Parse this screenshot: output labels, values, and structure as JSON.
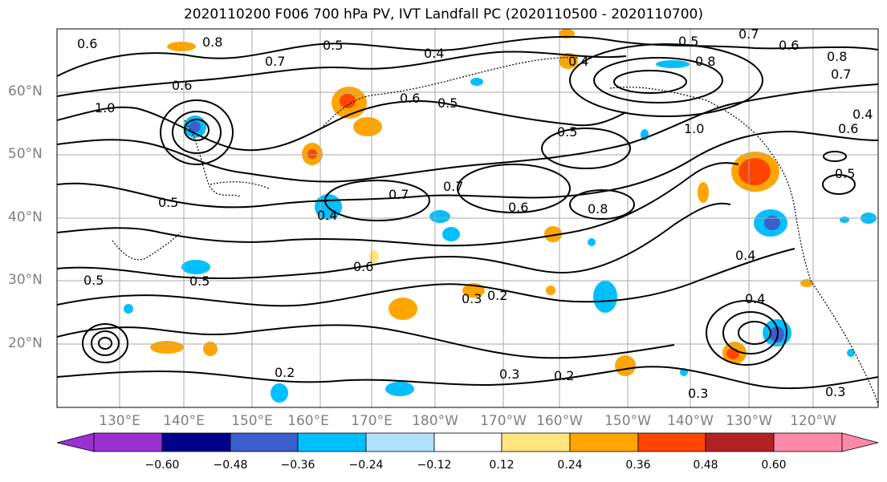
{
  "title": "2020110200 F006 700 hPa PV, IVT Landfall PC (2020110500 - 2020110700)",
  "lat_labels": [
    "60°N",
    "50°N",
    "40°N",
    "30°N",
    "20°N"
  ],
  "lon_labels": [
    "130°E",
    "140°E",
    "150°E",
    "160°E",
    "170°E",
    "180°W",
    "170°W",
    "160°W",
    "150°W",
    "140°W",
    "130°W",
    "120°W"
  ],
  "contour_labels": [
    "0.6",
    "0.8",
    "0.6",
    "1.0",
    "0.7",
    "0.5",
    "0.4",
    "0.6",
    "0.5",
    "0.5",
    "0.8",
    "0.7",
    "0.7",
    "0.8",
    "0.5",
    "0.4",
    "0.5",
    "0.3",
    "0.2",
    "0.6",
    "0.5",
    "0.2",
    "0.3",
    "0.2",
    "0.3",
    "0.4",
    "0.5",
    "0.6",
    "0.8",
    "0.7",
    "0.4",
    "0.6",
    "0.5",
    "0.7",
    "0.6",
    "0.4",
    "1.0",
    "0.4",
    "0.3"
  ],
  "colorbar": {
    "ticks": [
      "−0.60",
      "−0.48",
      "−0.36",
      "−0.24",
      "−0.12",
      "0.12",
      "0.24",
      "0.36",
      "0.48",
      "0.60"
    ],
    "colors": [
      "#9b30d0",
      "#00008b",
      "#3a5fcd",
      "#00bfff",
      "#b0e0ff",
      "#ffffff",
      "#ffe680",
      "#ffa500",
      "#ff4500",
      "#b22222",
      "#ff88aa"
    ]
  },
  "anomaly_colors": {
    "neg_dark": "#3a5fcd",
    "neg_mid": "#00bfff",
    "neg_light": "#b0e0ff",
    "pos_light": "#ffe680",
    "pos_mid": "#ffa500",
    "pos_strong": "#ff4500"
  }
}
